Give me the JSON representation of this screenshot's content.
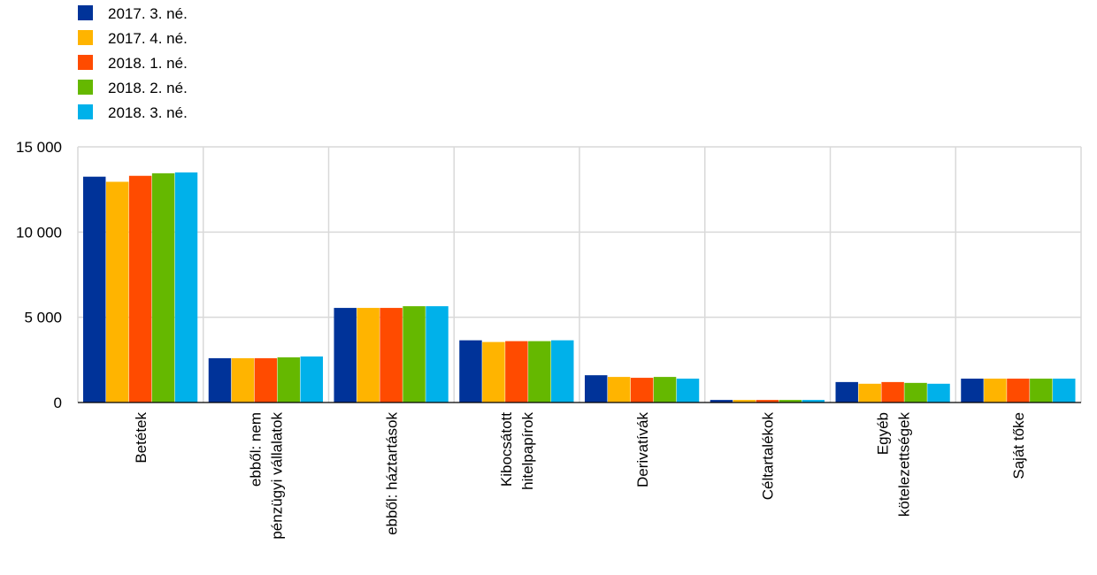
{
  "chart_data": {
    "type": "bar",
    "categories": [
      [
        "Betétek"
      ],
      [
        "ebből: nem",
        "pénzügyi vállalatok"
      ],
      [
        "ebből: háztartások"
      ],
      [
        "Kibocsátott",
        "hitelpapírok"
      ],
      [
        "Derivatívák"
      ],
      [
        "Céltartalékok"
      ],
      [
        "Egyéb",
        "kötelezettségek"
      ],
      [
        "Saját tőke"
      ]
    ],
    "series": [
      {
        "name": "2017. 3. né.",
        "color": "#003399",
        "values": [
          13250,
          2600,
          5550,
          3650,
          1600,
          150,
          1200,
          1400
        ]
      },
      {
        "name": "2017. 4. né.",
        "color": "#FFB400",
        "values": [
          12950,
          2600,
          5550,
          3550,
          1500,
          150,
          1100,
          1400
        ]
      },
      {
        "name": "2018. 1. né.",
        "color": "#FF4B00",
        "values": [
          13300,
          2600,
          5550,
          3600,
          1450,
          150,
          1200,
          1400
        ]
      },
      {
        "name": "2018. 2. né.",
        "color": "#65B800",
        "values": [
          13450,
          2650,
          5650,
          3600,
          1500,
          150,
          1150,
          1400
        ]
      },
      {
        "name": "2018. 3. né.",
        "color": "#00B1EA",
        "values": [
          13500,
          2700,
          5650,
          3650,
          1400,
          150,
          1100,
          1400
        ]
      }
    ],
    "yticks": [
      0,
      5000,
      10000,
      15000
    ],
    "ytick_labels": [
      "0",
      "5 000",
      "10 000",
      "15 000"
    ],
    "ylim": [
      0,
      15000
    ],
    "grid": true,
    "legend_position": "top-left"
  }
}
